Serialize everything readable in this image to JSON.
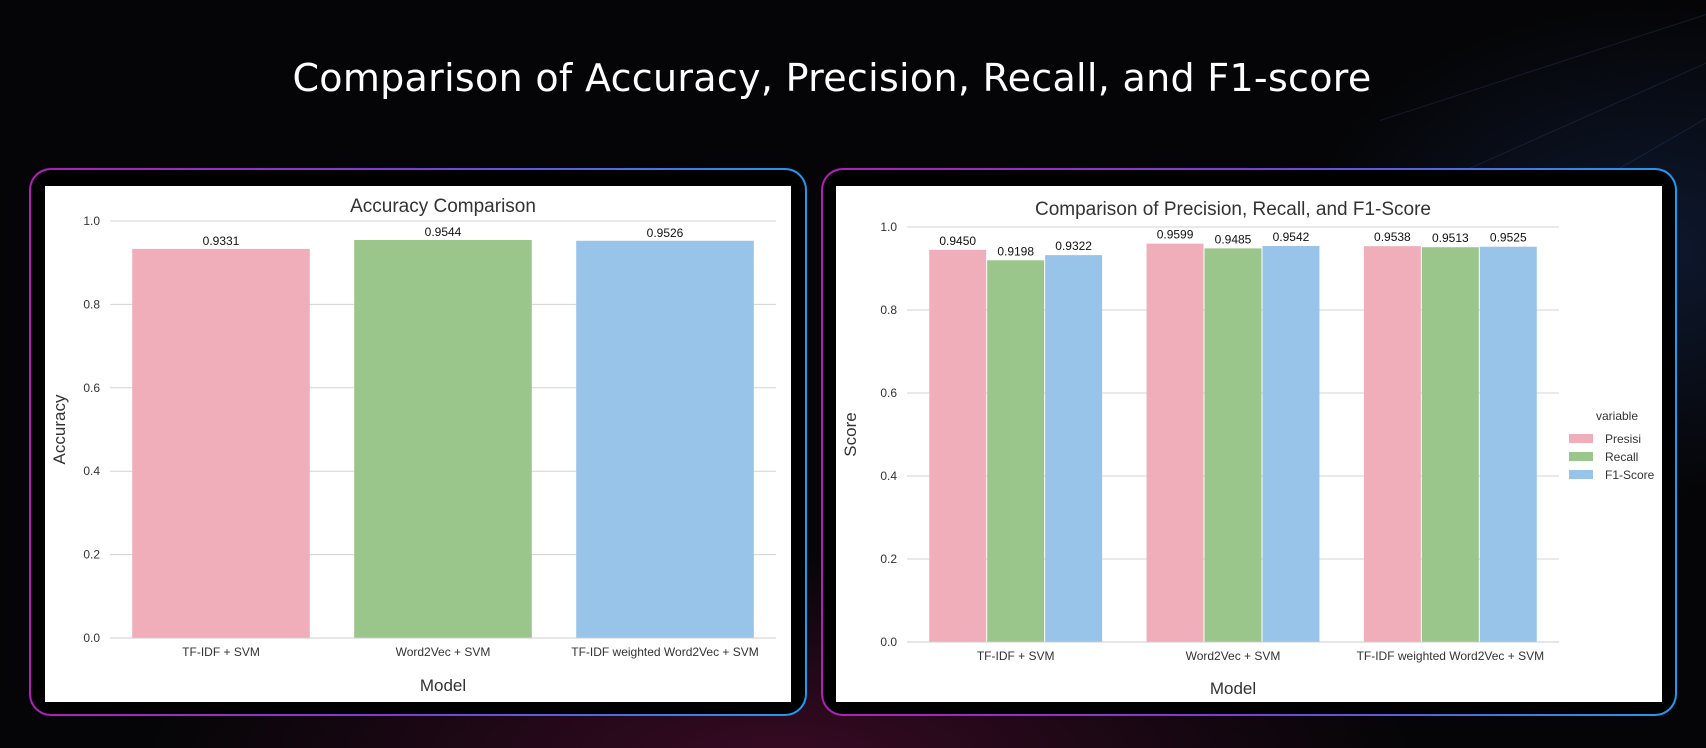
{
  "slide": {
    "title": "Comparison of Accuracy, Precision, Recall, and F1-score"
  },
  "colors": {
    "pink": "#f0aeba",
    "green": "#9bc68b",
    "blue": "#97c4e8",
    "panel_border_start": "#b01fb8",
    "panel_border_end": "#1e9bf0"
  },
  "chart_data": [
    {
      "type": "bar",
      "title": "Accuracy Comparison",
      "xlabel": "Model",
      "ylabel": "Accuracy",
      "categories": [
        "TF-IDF + SVM",
        "Word2Vec + SVM",
        "TF-IDF weighted Word2Vec + SVM"
      ],
      "values": [
        0.9331,
        0.9544,
        0.9526
      ],
      "value_labels": [
        "0.9331",
        "0.9544",
        "0.9526"
      ],
      "bar_colors": [
        "#f0aeba",
        "#9bc68b",
        "#97c4e8"
      ],
      "ylim": [
        0,
        1.0
      ],
      "yticks": [
        "0.0",
        "0.2",
        "0.4",
        "0.6",
        "0.8",
        "1.0"
      ],
      "grid": true
    },
    {
      "type": "bar",
      "title": "Comparison of Precision, Recall, and F1-Score",
      "xlabel": "Model",
      "ylabel": "Score",
      "categories": [
        "TF-IDF + SVM",
        "Word2Vec + SVM",
        "TF-IDF weighted Word2Vec + SVM"
      ],
      "series": [
        {
          "name": "Presisi",
          "color": "#f0aeba",
          "values": [
            0.945,
            0.9599,
            0.9538
          ],
          "value_labels": [
            "0.9450",
            "0.9599",
            "0.9538"
          ]
        },
        {
          "name": "Recall",
          "color": "#9bc68b",
          "values": [
            0.9198,
            0.9485,
            0.9513
          ],
          "value_labels": [
            "0.9198",
            "0.9485",
            "0.9513"
          ]
        },
        {
          "name": "F1-Score",
          "color": "#97c4e8",
          "values": [
            0.9322,
            0.9542,
            0.9525
          ],
          "value_labels": [
            "0.9322",
            "0.9542",
            "0.9525"
          ]
        }
      ],
      "legend_title": "variable",
      "legend_position": "center-right",
      "ylim": [
        0,
        1.0
      ],
      "yticks": [
        "0.0",
        "0.2",
        "0.4",
        "0.6",
        "0.8",
        "1.0"
      ],
      "grid": true
    }
  ]
}
